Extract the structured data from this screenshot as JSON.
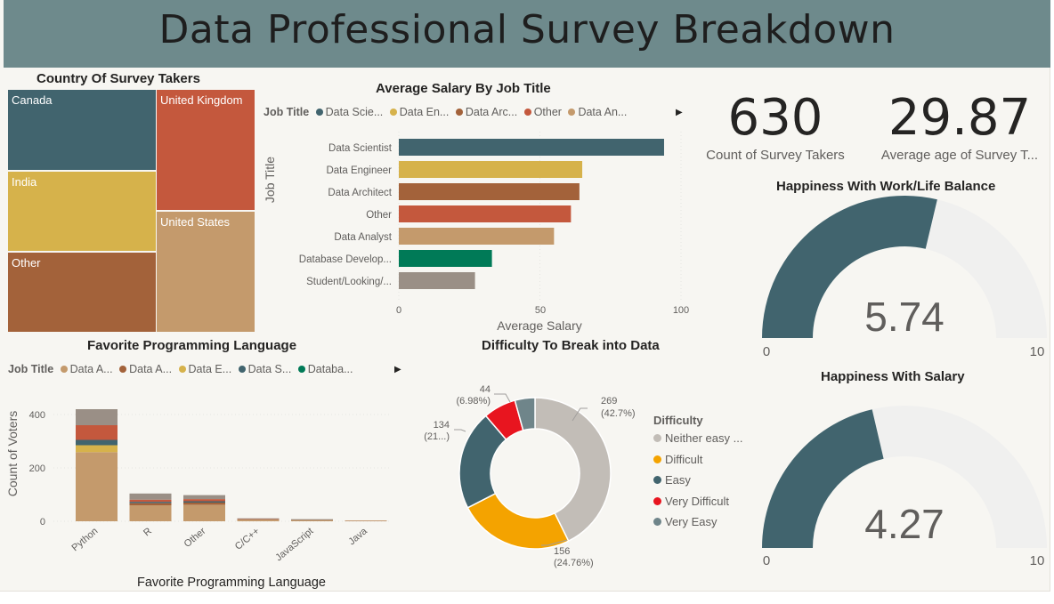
{
  "header": {
    "title": "Data Professional Survey Breakdown"
  },
  "colors": {
    "teal": "#41646e",
    "gold": "#d6b24b",
    "brown": "#a3623a",
    "orange": "#c4583d",
    "tan": "#c49a6c",
    "green": "#007a57",
    "gray": "#9a8f86",
    "light_gray": "#c2bdb7",
    "amber": "#f4a300",
    "red": "#e8151f",
    "slate": "#6f858a",
    "track": "#f0f0ef"
  },
  "treemap": {
    "title": "Country Of Survey Takers",
    "cells": [
      {
        "label": "Canada",
        "color": "#41646e"
      },
      {
        "label": "India",
        "color": "#d6b24b"
      },
      {
        "label": "Other",
        "color": "#a3623a"
      },
      {
        "label": "United Kingdom",
        "color": "#c4583d"
      },
      {
        "label": "United States",
        "color": "#c49a6c"
      }
    ]
  },
  "salary_chart": {
    "title": "Average Salary By Job Title",
    "legend_title": "Job Title",
    "legend_items": [
      "Data Scie...",
      "Data En...",
      "Data Arc...",
      "Other",
      "Data An..."
    ],
    "legend_colors": [
      "#41646e",
      "#d6b24b",
      "#a3623a",
      "#c4583d",
      "#c49a6c"
    ],
    "ylabel": "Job Title",
    "xlabel": "Average Salary",
    "xticks": [
      "0",
      "50",
      "100"
    ]
  },
  "kpi": {
    "count_value": "630",
    "count_label": "Count of Survey Takers",
    "age_value": "29.87",
    "age_label": "Average age of Survey T..."
  },
  "gauge_worklife": {
    "title": "Happiness With Work/Life Balance",
    "value": 5.74,
    "value_label": "5.74",
    "min_label": "0",
    "max_label": "10",
    "min": 0,
    "max": 10
  },
  "gauge_salary": {
    "title": "Happiness With Salary",
    "value": 4.27,
    "value_label": "4.27",
    "min_label": "0",
    "max_label": "10",
    "min": 0,
    "max": 10
  },
  "language_chart": {
    "title": "Favorite Programming Language",
    "legend_title": "Job Title",
    "legend_items": [
      "Data A...",
      "Data A...",
      "Data E...",
      "Data S...",
      "Databa..."
    ],
    "legend_colors": [
      "#c49a6c",
      "#a3623a",
      "#d6b24b",
      "#41646e",
      "#007a57"
    ],
    "ylabel": "Count of Voters",
    "xlabel": "Favorite Programming Language",
    "yticks": [
      "0",
      "200",
      "400"
    ]
  },
  "donut": {
    "title": "Difficulty To Break into Data",
    "legend_title": "Difficulty",
    "labels": [
      {
        "value": "269",
        "pct": "(42.7%)"
      },
      {
        "value": "156",
        "pct": "(24.76%)"
      },
      {
        "value": "134",
        "pct": "(21...)"
      },
      {
        "value": "44",
        "pct": "(6.98%)"
      }
    ],
    "legend_items": [
      "Neither easy ...",
      "Difficult",
      "Easy",
      "Very Difficult",
      "Very Easy"
    ]
  },
  "chart_data": [
    {
      "type": "bar",
      "orientation": "horizontal",
      "title": "Average Salary By Job Title",
      "xlabel": "Average Salary",
      "ylabel": "Job Title",
      "categories": [
        "Data Scientist",
        "Data Engineer",
        "Data Architect",
        "Other",
        "Data Analyst",
        "Database Develop...",
        "Student/Looking/..."
      ],
      "values": [
        94,
        65,
        64,
        61,
        55,
        33,
        27
      ],
      "colors": [
        "#41646e",
        "#d6b24b",
        "#a3623a",
        "#c4583d",
        "#c49a6c",
        "#007a57",
        "#9a8f86"
      ],
      "xlim": [
        0,
        100
      ]
    },
    {
      "type": "bar",
      "stacked": true,
      "title": "Favorite Programming Language",
      "xlabel": "Favorite Programming Language",
      "ylabel": "Count of Voters",
      "categories": [
        "Python",
        "R",
        "Other",
        "C/C++",
        "JavaScript",
        "Java"
      ],
      "ylim": [
        0,
        450
      ],
      "series": [
        {
          "name": "Data A...",
          "color": "#c49a6c",
          "values": [
            259,
            60,
            62,
            6,
            4,
            2
          ]
        },
        {
          "name": "Data A...",
          "color": "#a3623a",
          "values": [
            0,
            8,
            8,
            2,
            2,
            1
          ]
        },
        {
          "name": "Data E...",
          "color": "#d6b24b",
          "values": [
            26,
            0,
            0,
            0,
            0,
            0
          ]
        },
        {
          "name": "Data S...",
          "color": "#41646e",
          "values": [
            20,
            5,
            5,
            1,
            1,
            0
          ]
        },
        {
          "name": "",
          "color": "#c4583d",
          "values": [
            55,
            8,
            8,
            1,
            0,
            0
          ]
        },
        {
          "name": "",
          "color": "#9a8f86",
          "values": [
            60,
            23,
            15,
            1,
            1,
            0
          ]
        }
      ]
    },
    {
      "type": "pie",
      "donut": true,
      "title": "Difficulty To Break into Data",
      "categories": [
        "Neither easy ...",
        "Difficult",
        "Easy",
        "Very Difficult",
        "Very Easy"
      ],
      "values": [
        269,
        156,
        134,
        44,
        27
      ],
      "colors": [
        "#c2bdb7",
        "#f4a300",
        "#41646e",
        "#e8151f",
        "#6f858a"
      ]
    }
  ]
}
